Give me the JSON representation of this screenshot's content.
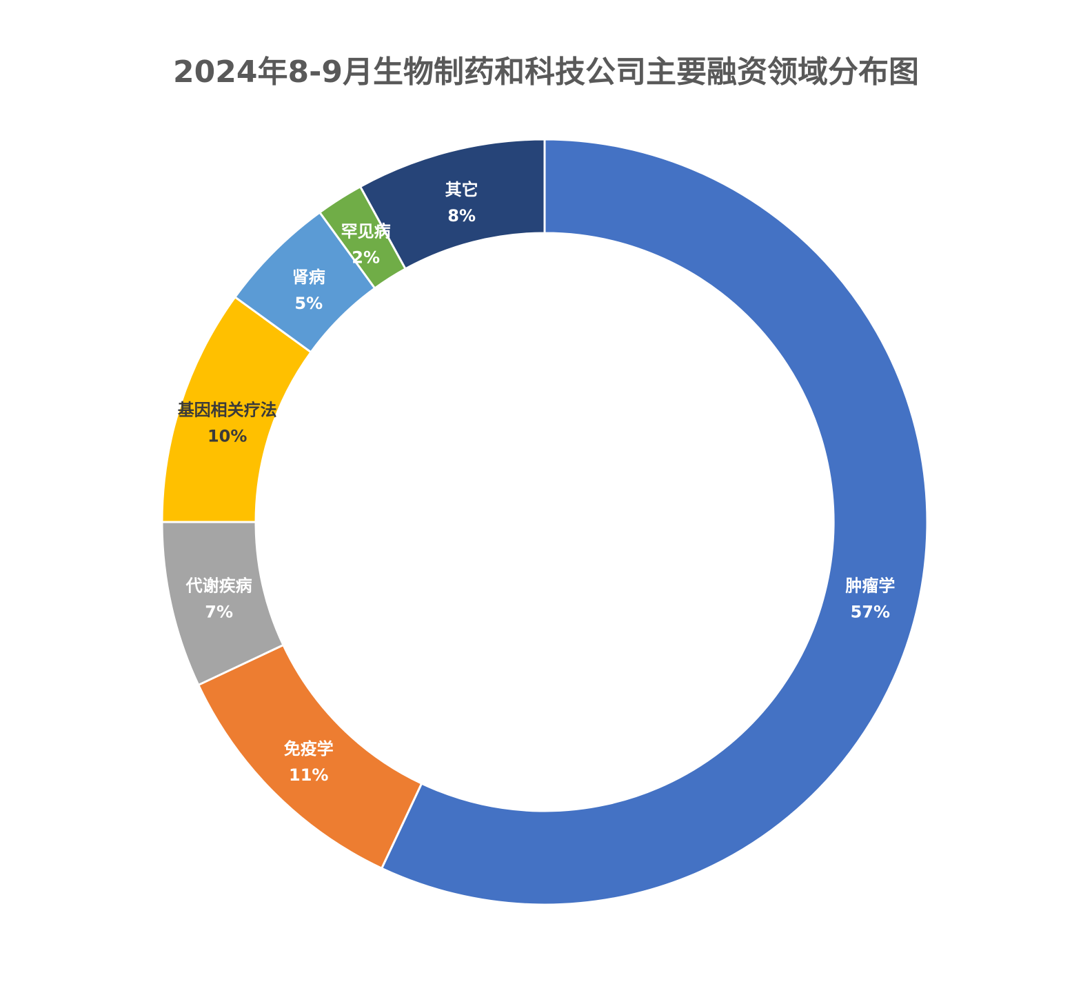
{
  "chart_data": {
    "type": "pie",
    "title": "2024年8-9月生物制药和科技公司主要融资领域分布图",
    "value_unit": "%",
    "slices": [
      {
        "name": "肿瘤学",
        "value": 57,
        "label_value": "57%",
        "color": "#4472C4",
        "label_color": "#ffffff"
      },
      {
        "name": "免疫学",
        "value": 11,
        "label_value": "11%",
        "color": "#ED7D31",
        "label_color": "#ffffff"
      },
      {
        "name": "代谢疾病",
        "value": 7,
        "label_value": "7%",
        "color": "#A5A5A5",
        "label_color": "#ffffff"
      },
      {
        "name": "基因相关疗法",
        "value": 10,
        "label_value": "10%",
        "color": "#FFC000",
        "label_color": "#3a3a3a"
      },
      {
        "name": "肾病",
        "value": 5,
        "label_value": "5%",
        "color": "#5B9BD5",
        "label_color": "#ffffff"
      },
      {
        "name": "罕见病",
        "value": 2,
        "label_value": "2%",
        "color": "#70AD47",
        "label_color": "#ffffff"
      },
      {
        "name": "其它",
        "value": 8,
        "label_value": "8%",
        "color": "#264478",
        "label_color": "#ffffff"
      }
    ]
  }
}
